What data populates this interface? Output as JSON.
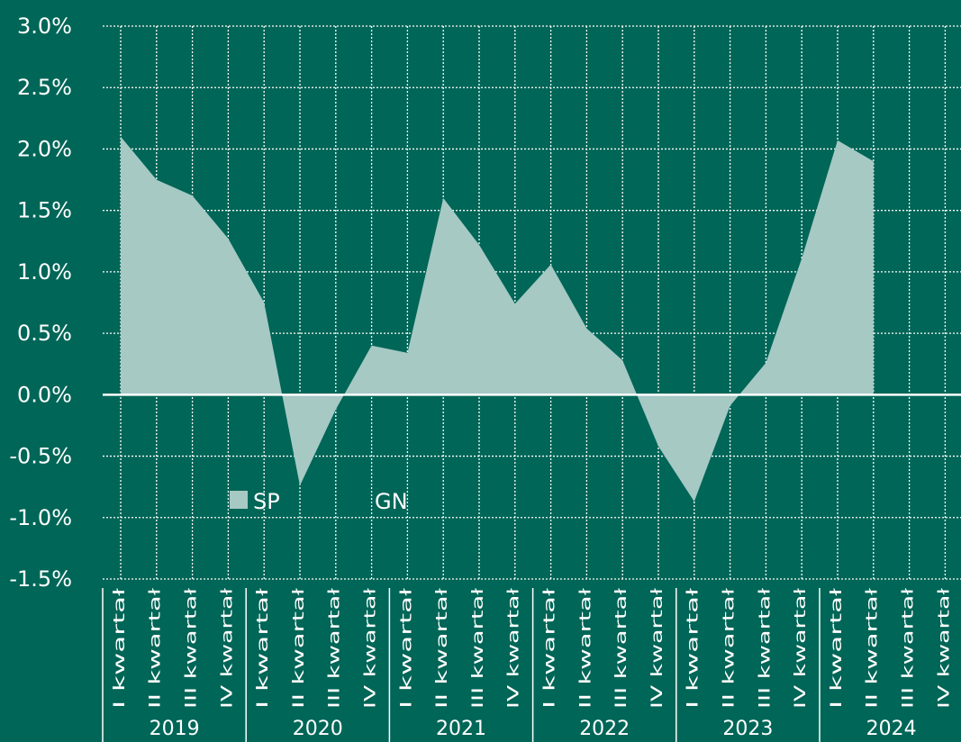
{
  "chart_data": {
    "type": "area",
    "title": "",
    "xlabel": "",
    "ylabel": "",
    "ylim": [
      -0.015,
      0.03
    ],
    "y_ticks": [
      0.03,
      0.025,
      0.02,
      0.015,
      0.01,
      0.005,
      0.0,
      -0.005,
      -0.01,
      -0.015
    ],
    "y_tick_labels": [
      "3.0%",
      "2.5%",
      "2.0%",
      "1.5%",
      "1.0%",
      "0.5%",
      "0.0%",
      "-0.5%",
      "-1.0%",
      "-1.5%"
    ],
    "years": [
      "2019",
      "2020",
      "2021",
      "2022",
      "2023",
      "2024"
    ],
    "quarter_labels": [
      "I kwartał",
      "II kwartał",
      "III kwartał",
      "IV kwartał"
    ],
    "grid": true,
    "legend_position": "lower-left",
    "series": [
      {
        "name": "SP",
        "color": "#a6c9c4",
        "values": [
          0.021,
          0.0175,
          0.0162,
          0.0127,
          0.0075,
          -0.0074,
          -0.0012,
          0.004,
          0.0034,
          0.016,
          0.0122,
          0.0074,
          0.0106,
          0.0054,
          0.0028,
          -0.0042,
          -0.0087,
          -0.0009,
          0.0026,
          0.0111,
          0.0207,
          0.019
        ]
      },
      {
        "name": "GN",
        "color": "#006657",
        "values": []
      }
    ]
  }
}
